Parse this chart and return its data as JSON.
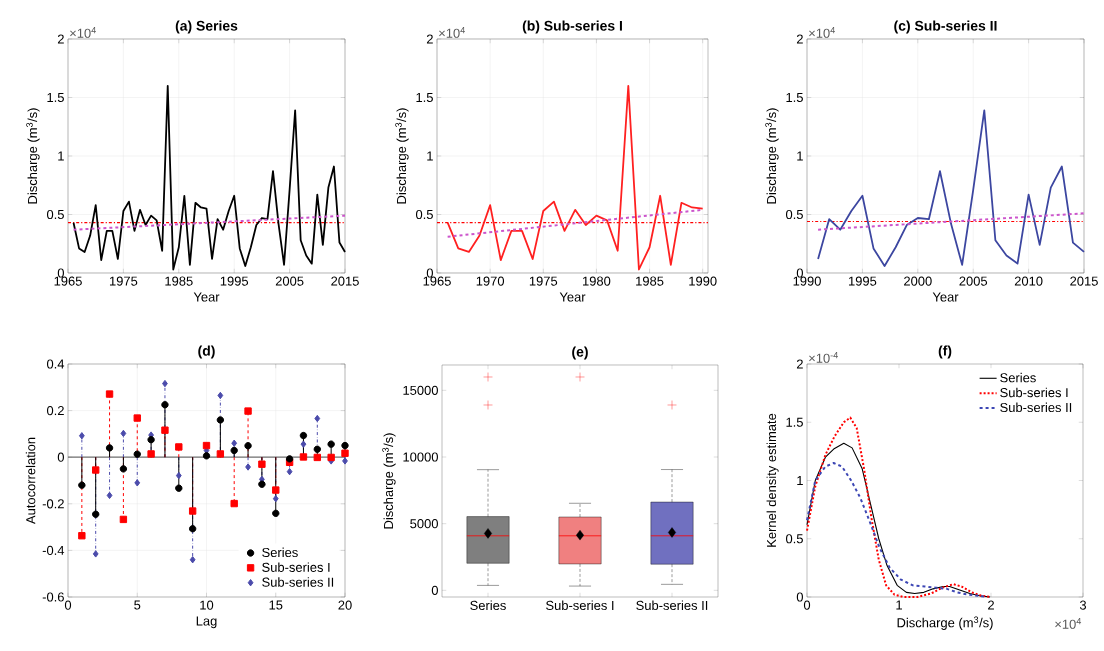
{
  "chart_data": [
    {
      "type": "line",
      "title": "(a) Series",
      "xlabel": "Year",
      "ylabel": "Discharge (m$^{3}$/s)",
      "annotations": [
        "×10$^{4}$"
      ],
      "grid": true,
      "x": [
        1966,
        1967,
        1968,
        1969,
        1970,
        1971,
        1972,
        1973,
        1974,
        1975,
        1976,
        1977,
        1978,
        1979,
        1980,
        1981,
        1982,
        1983,
        1984,
        1985,
        1986,
        1987,
        1988,
        1989,
        1990,
        1991,
        1992,
        1993,
        1994,
        1995,
        1996,
        1997,
        1998,
        1999,
        2000,
        2001,
        2002,
        2003,
        2004,
        2005,
        2006,
        2007,
        2008,
        2009,
        2010,
        2011,
        2012,
        2013,
        2014,
        2015
      ],
      "xlim": [
        1965,
        2015
      ],
      "xticks": [
        1965,
        1975,
        1985,
        1995,
        2005,
        2015
      ],
      "ylim": [
        0,
        2
      ],
      "yticks": [
        0,
        0.5,
        1,
        1.5,
        2
      ],
      "ref_lines": [
        {
          "axis": "y",
          "value": 0.43,
          "color": "#ff0000",
          "line_style": "dashdot"
        }
      ],
      "series": [
        {
          "color": "#000000",
          "values": [
            0.43,
            0.21,
            0.18,
            0.32,
            0.58,
            0.11,
            0.36,
            0.36,
            0.12,
            0.53,
            0.61,
            0.36,
            0.54,
            0.41,
            0.49,
            0.45,
            0.19,
            1.6,
            0.03,
            0.22,
            0.66,
            0.07,
            0.6,
            0.56,
            0.55,
            0.12,
            0.46,
            0.37,
            0.53,
            0.66,
            0.21,
            0.06,
            0.22,
            0.41,
            0.47,
            0.46,
            0.87,
            0.42,
            0.07,
            0.71,
            1.39,
            0.28,
            0.15,
            0.08,
            0.67,
            0.24,
            0.73,
            0.91,
            0.26,
            0.18
          ]
        },
        {
          "type": "line",
          "x": [
            1966,
            2015
          ],
          "values": [
            0.37,
            0.49
          ],
          "color": "#cc55cc",
          "line_style": "dashed"
        }
      ]
    },
    {
      "type": "line",
      "title": "(b) Sub-series I",
      "xlabel": "Year",
      "ylabel": "Discharge (m$^{3}$/s)",
      "annotations": [
        "×10$^{4}$"
      ],
      "grid": true,
      "x": [
        1966,
        1967,
        1968,
        1969,
        1970,
        1971,
        1972,
        1973,
        1974,
        1975,
        1976,
        1977,
        1978,
        1979,
        1980,
        1981,
        1982,
        1983,
        1984,
        1985,
        1986,
        1987,
        1988,
        1989,
        1990
      ],
      "xlim": [
        1965,
        1990.5
      ],
      "xticks": [
        1965,
        1970,
        1975,
        1980,
        1985,
        1990
      ],
      "ylim": [
        0,
        2
      ],
      "yticks": [
        0,
        0.5,
        1,
        1.5,
        2
      ],
      "ref_lines": [
        {
          "axis": "y",
          "value": 0.43,
          "color": "#ff0000",
          "line_style": "dashdot"
        }
      ],
      "series": [
        {
          "color": "#ff2020",
          "values": [
            0.43,
            0.21,
            0.18,
            0.32,
            0.58,
            0.11,
            0.36,
            0.36,
            0.12,
            0.53,
            0.61,
            0.36,
            0.54,
            0.41,
            0.49,
            0.45,
            0.19,
            1.6,
            0.03,
            0.22,
            0.66,
            0.07,
            0.6,
            0.56,
            0.55
          ]
        },
        {
          "type": "line",
          "x": [
            1966,
            1990
          ],
          "values": [
            0.31,
            0.54
          ],
          "color": "#cc55cc",
          "line_style": "dashed"
        }
      ]
    },
    {
      "type": "line",
      "title": "(c) Sub-series II",
      "xlabel": "Year",
      "ylabel": "Discharge (m$^{3}$/s)",
      "annotations": [
        "×10$^{4}$"
      ],
      "grid": true,
      "x": [
        1991,
        1992,
        1993,
        1994,
        1995,
        1996,
        1997,
        1998,
        1999,
        2000,
        2001,
        2002,
        2003,
        2004,
        2005,
        2006,
        2007,
        2008,
        2009,
        2010,
        2011,
        2012,
        2013,
        2014,
        2015
      ],
      "xlim": [
        1990,
        2015
      ],
      "xticks": [
        1990,
        1995,
        2000,
        2005,
        2010,
        2015
      ],
      "ylim": [
        0,
        2
      ],
      "yticks": [
        0,
        0.5,
        1,
        1.5,
        2
      ],
      "ref_lines": [
        {
          "axis": "y",
          "value": 0.44,
          "color": "#ff0000",
          "line_style": "dashdot"
        }
      ],
      "series": [
        {
          "color": "#3c46a0",
          "values": [
            0.12,
            0.46,
            0.37,
            0.53,
            0.66,
            0.21,
            0.06,
            0.22,
            0.41,
            0.47,
            0.46,
            0.87,
            0.42,
            0.07,
            0.71,
            1.39,
            0.28,
            0.15,
            0.08,
            0.67,
            0.24,
            0.73,
            0.91,
            0.26,
            0.18
          ]
        },
        {
          "type": "line",
          "x": [
            1991,
            2015
          ],
          "values": [
            0.37,
            0.51
          ],
          "color": "#cc55cc",
          "line_style": "dashed"
        }
      ]
    },
    {
      "type": "lollipop",
      "title": "(d)",
      "xlabel": "Lag",
      "ylabel": "Autocorrelation",
      "grid": true,
      "legend": "bottom right",
      "x": [
        1,
        2,
        3,
        4,
        5,
        6,
        7,
        8,
        9,
        10,
        11,
        12,
        13,
        14,
        15,
        16,
        17,
        18,
        19,
        20
      ],
      "xlim": [
        0,
        20
      ],
      "xticks": [
        0,
        5,
        10,
        15,
        20
      ],
      "ylim": [
        -0.6,
        0.4
      ],
      "yticks": [
        -0.6,
        -0.4,
        -0.2,
        0,
        0.2,
        0.4
      ],
      "ref_lines": [
        {
          "axis": "y",
          "value": 0,
          "color": "#707070",
          "line_style": "solid"
        }
      ],
      "series": [
        {
          "name": "Series",
          "color": "#000000",
          "marker": "circle",
          "line_style": "solid",
          "values": [
            -0.12,
            -0.245,
            0.04,
            -0.05,
            0.013,
            0.075,
            0.225,
            -0.133,
            -0.307,
            0.006,
            0.16,
            0.029,
            0.049,
            -0.116,
            -0.241,
            -0.007,
            0.093,
            0.034,
            0.056,
            0.05
          ]
        },
        {
          "name": "Sub-series I",
          "color": "#ff0000",
          "marker": "square",
          "line_style": "dashed",
          "values": [
            -0.337,
            -0.055,
            0.271,
            -0.267,
            0.168,
            0.014,
            0.116,
            0.044,
            -0.231,
            0.05,
            0.014,
            -0.199,
            0.198,
            -0.03,
            -0.141,
            -0.022,
            0.001,
            -0.001,
            -0.001,
            0.017
          ]
        },
        {
          "name": "Sub-series II",
          "color": "#4b4bab",
          "marker": "diamond",
          "line_style": "dashdot",
          "values": [
            0.092,
            -0.415,
            -0.164,
            0.102,
            -0.11,
            0.095,
            0.316,
            -0.079,
            -0.44,
            0.029,
            0.265,
            0.06,
            -0.042,
            -0.095,
            -0.178,
            -0.062,
            0.056,
            0.166,
            -0.016,
            -0.016
          ]
        }
      ]
    },
    {
      "type": "box",
      "title": "(e)",
      "ylabel": "Discharge (m$^{3}$/s)",
      "categories": [
        "Series",
        "Sub-series I",
        "Sub-series II"
      ],
      "colors": [
        "#7f7f7f",
        "#f08080",
        "#7070c0"
      ],
      "ylim": [
        -500,
        16900
      ],
      "yticks": [
        0,
        5000,
        10000,
        15000
      ],
      "boxes": [
        {
          "low": 370,
          "q1": 2030,
          "median": 4090,
          "q3": 5530,
          "high": 9050,
          "mean": 4270,
          "outliers": [
            16000,
            13900
          ]
        },
        {
          "low": 320,
          "q1": 1980,
          "median": 4090,
          "q3": 5500,
          "high": 6530,
          "mean": 4140,
          "outliers": [
            16000
          ]
        },
        {
          "low": 450,
          "q1": 1960,
          "median": 4090,
          "q3": 6620,
          "high": 9060,
          "mean": 4340,
          "outliers": [
            13900
          ]
        }
      ]
    },
    {
      "type": "line",
      "title": "(f)",
      "xlabel": "Discharge (m$^{3}$/s)",
      "ylabel": "Kernel density estimate",
      "annotations": [
        "×10$^{-4}$",
        "×10$^{4}$"
      ],
      "legend": "top right",
      "xlim": [
        0,
        3
      ],
      "xticks": [
        0,
        1,
        2,
        3
      ],
      "ylim": [
        0,
        2
      ],
      "yticks": [
        0,
        0.5,
        1,
        1.5,
        2
      ],
      "series": [
        {
          "name": "Series",
          "color": "#000000",
          "line_style": "solid",
          "x": [
            0,
            0.09,
            0.2,
            0.29,
            0.4,
            0.49,
            0.6,
            0.69,
            0.78,
            0.87,
            0.98,
            1.08,
            1.17,
            1.27,
            1.37,
            1.48,
            1.55,
            1.66,
            1.77,
            1.88,
            1.99
          ],
          "values": [
            0.62,
            1.0,
            1.2,
            1.27,
            1.32,
            1.28,
            1.1,
            0.8,
            0.5,
            0.27,
            0.1,
            0.04,
            0.03,
            0.04,
            0.07,
            0.09,
            0.09,
            0.06,
            0.03,
            0.01,
            0
          ]
        },
        {
          "name": "Sub-series I",
          "color": "#ff0000",
          "line_style": "dotted",
          "x": [
            0,
            0.09,
            0.2,
            0.3,
            0.4,
            0.47,
            0.54,
            0.62,
            0.7,
            0.78,
            0.86,
            0.95,
            1.05,
            1.2,
            1.35,
            1.47,
            1.59,
            1.68,
            1.79,
            1.9,
            2.0
          ],
          "values": [
            0.57,
            0.95,
            1.22,
            1.38,
            1.5,
            1.54,
            1.45,
            1.1,
            0.68,
            0.32,
            0.1,
            0.02,
            0,
            0,
            0.03,
            0.08,
            0.11,
            0.09,
            0.04,
            0.01,
            0
          ]
        },
        {
          "name": "Sub-series II",
          "color": "#3c46b4",
          "line_style": "dashed",
          "x": [
            0,
            0.09,
            0.2,
            0.29,
            0.38,
            0.48,
            0.58,
            0.69,
            0.79,
            0.9,
            1.02,
            1.15,
            1.28,
            1.4,
            1.52,
            1.63,
            1.75,
            1.87,
            1.95
          ],
          "values": [
            0.66,
            1.0,
            1.12,
            1.15,
            1.12,
            1.0,
            0.85,
            0.63,
            0.42,
            0.25,
            0.15,
            0.1,
            0.09,
            0.08,
            0.07,
            0.04,
            0.02,
            0.01,
            0
          ]
        }
      ]
    }
  ]
}
